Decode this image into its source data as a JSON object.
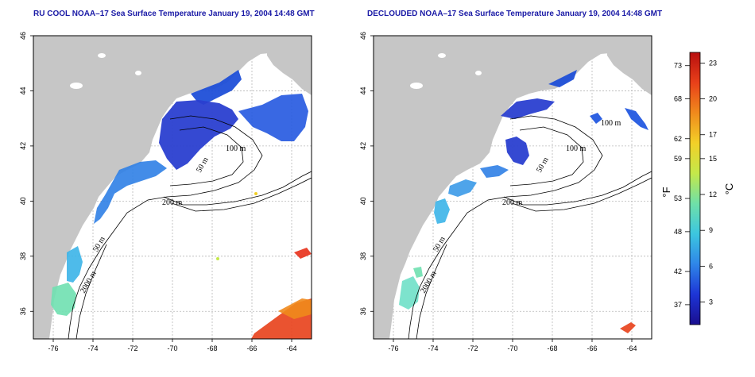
{
  "colors": {
    "title": "#1a1aa6",
    "land": "#c6c6c6",
    "ocean": "#ffffff",
    "grid": "#b8b8b8",
    "contour": "#000000"
  },
  "left_panel": {
    "title": "RU COOL NOAA–17 Sea Surface Temperature January 19, 2004 14:48 GMT",
    "contour_labels": [
      "100 m",
      "50 m",
      "200 m",
      "50 m",
      "2000 m"
    ]
  },
  "right_panel": {
    "title": "DECLOUDED NOAA–17 Sea Surface Temperature January 19, 2004 14:48 GMT",
    "contour_labels": [
      "100 m",
      "50 m",
      "200 m",
      "50 m",
      "2000 m",
      "100 m"
    ]
  },
  "axes": {
    "x_ticks": [
      "-76",
      "-74",
      "-72",
      "-70",
      "-68",
      "-66",
      "-64"
    ],
    "y_ticks": [
      "36",
      "38",
      "40",
      "42",
      "44",
      "46"
    ]
  },
  "colorbar": {
    "unit_f": "°F",
    "unit_c": "°C",
    "f_ticks": [
      "37",
      "42",
      "48",
      "53",
      "59",
      "62",
      "68",
      "73"
    ],
    "c_ticks": [
      "3",
      "6",
      "9",
      "12",
      "15",
      "17",
      "20",
      "23"
    ],
    "stops": [
      "#1a0f8f",
      "#1d35d6",
      "#2f86e8",
      "#3cc6e0",
      "#6fe0a8",
      "#c4e84a",
      "#f2d028",
      "#f08a1c",
      "#e8401a",
      "#b80f0f"
    ]
  }
}
